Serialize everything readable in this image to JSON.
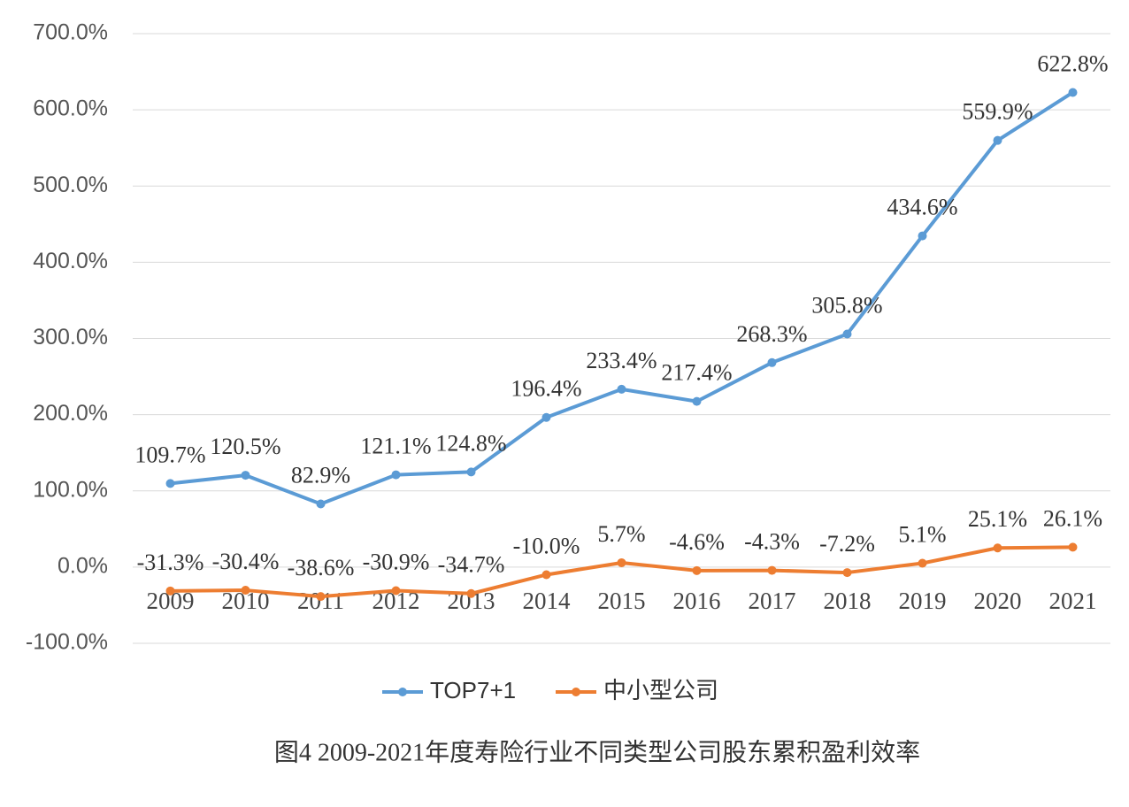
{
  "chart_data": {
    "type": "line",
    "title": "图4 2009-2021年度寿险行业不同类型公司股东累积盈利效率",
    "categories": [
      "2009",
      "2010",
      "2011",
      "2012",
      "2013",
      "2014",
      "2015",
      "2016",
      "2017",
      "2018",
      "2019",
      "2020",
      "2021"
    ],
    "series": [
      {
        "name": "TOP7+1",
        "color": "#5b9bd5",
        "values": [
          109.7,
          120.5,
          82.9,
          121.1,
          124.8,
          196.4,
          233.4,
          217.4,
          268.3,
          305.8,
          434.6,
          559.9,
          622.8
        ],
        "value_labels": [
          "109.7%",
          "120.5%",
          "82.9%",
          "121.1%",
          "124.8%",
          "196.4%",
          "233.4%",
          "217.4%",
          "268.3%",
          "305.8%",
          "434.6%",
          "559.9%",
          "622.8%"
        ]
      },
      {
        "name": "中小型公司",
        "color": "#ed7d31",
        "values": [
          -31.3,
          -30.4,
          -38.6,
          -30.9,
          -34.7,
          -10.0,
          5.7,
          -4.6,
          -4.3,
          -7.2,
          5.1,
          25.1,
          26.1
        ],
        "value_labels": [
          "-31.3%",
          "-30.4%",
          "-38.6%",
          "-30.9%",
          "-34.7%",
          "-10.0%",
          "5.7%",
          "-4.6%",
          "-4.3%",
          "-7.2%",
          "5.1%",
          "25.1%",
          "26.1%"
        ]
      }
    ],
    "ylim": [
      -100,
      700
    ],
    "yticks": [
      {
        "value": -100,
        "label": "-100.0%"
      },
      {
        "value": 0,
        "label": "0.0%"
      },
      {
        "value": 100,
        "label": "100.0%"
      },
      {
        "value": 200,
        "label": "200.0%"
      },
      {
        "value": 300,
        "label": "300.0%"
      },
      {
        "value": 400,
        "label": "400.0%"
      },
      {
        "value": 500,
        "label": "500.0%"
      },
      {
        "value": 600,
        "label": "600.0%"
      },
      {
        "value": 700,
        "label": "700.0%"
      }
    ],
    "grid": true
  }
}
